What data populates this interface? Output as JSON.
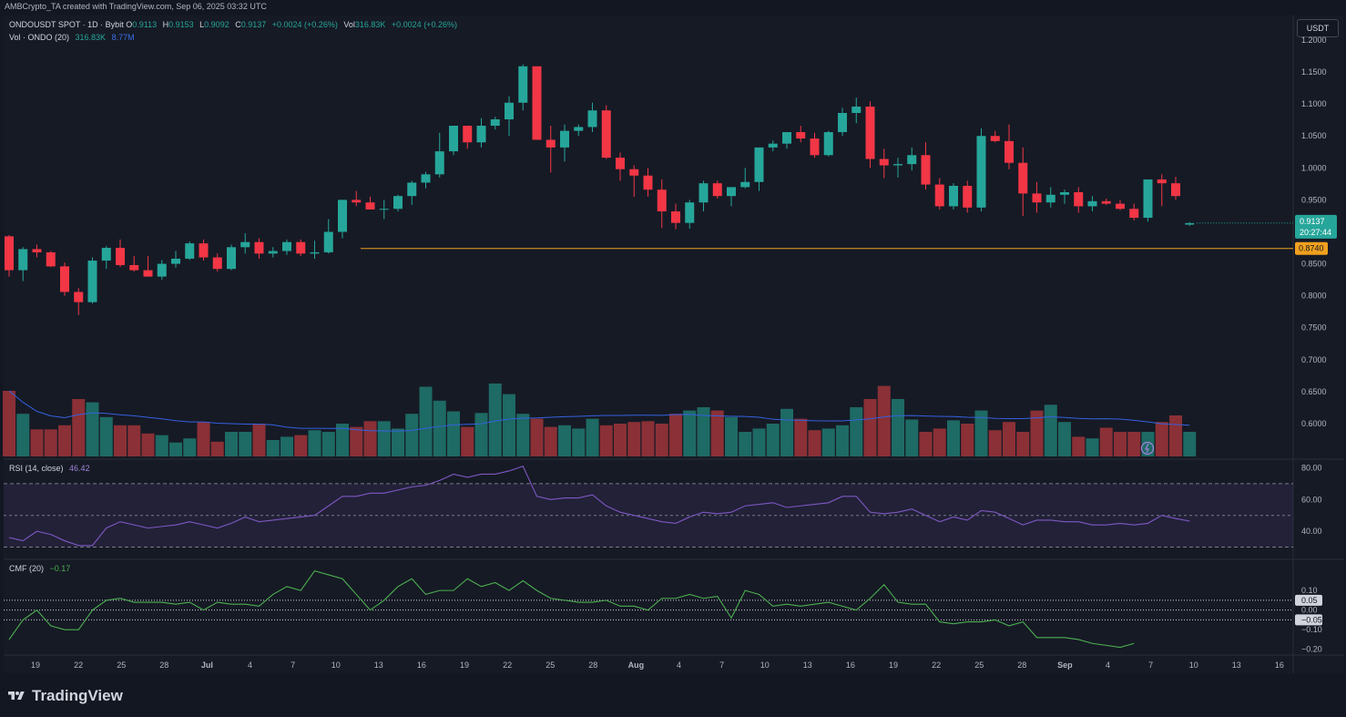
{
  "header": {
    "credit": "AMBCrypto_TA created with TradingView.com, Sep 06, 2025 03:32 UTC",
    "symbol": "ONDOUSDT SPOT · 1D · Bybit",
    "o_label": "O",
    "o": "0.9113",
    "h_label": "H",
    "h": "0.9153",
    "l_label": "L",
    "l": "0.9092",
    "c_label": "C",
    "c": "0.9137",
    "change": "+0.0024 (+0.26%)",
    "vol_label": "Vol",
    "vol": "316.83K",
    "vol_change": "+0.0024 (+0.26%)",
    "vol_indicator": "Vol · ONDO (20)",
    "vol_value": "316.83K",
    "vol_ma": "8.77M",
    "currency_button": "USDT"
  },
  "rsi": {
    "label": "RSI (14, close)",
    "value": "46.42"
  },
  "cmf": {
    "label": "CMF (20)",
    "value": "−0.17"
  },
  "brand": "TradingView",
  "colors": {
    "up": "#26a69a",
    "down": "#f23645",
    "vol_up": "#1e6a64",
    "vol_down": "#8a3036",
    "rsi": "#7e57c2",
    "cmf": "#4caf50",
    "support": "#f0a01e",
    "ma": "#3461e0"
  },
  "chart_data": [
    {
      "type": "candlestick",
      "title": "ONDOUSDT SPOT · 1D · Bybit",
      "y_ticks": [
        "0.6000",
        "0.6500",
        "0.7000",
        "0.7500",
        "0.8000",
        "0.8500",
        "0.9000",
        "0.9500",
        "1.0000",
        "1.0500",
        "1.1000",
        "1.1500",
        "1.2000"
      ],
      "x_ticks": [
        "19",
        "22",
        "25",
        "28",
        "Jul",
        "4",
        "7",
        "10",
        "13",
        "16",
        "19",
        "22",
        "25",
        "28",
        "Aug",
        "4",
        "7",
        "10",
        "13",
        "16",
        "19",
        "22",
        "25",
        "28",
        "Sep",
        "4",
        "7",
        "10",
        "13",
        "16"
      ],
      "current_price": "0.9137",
      "countdown": "20:27:44",
      "support_level": "0.8740",
      "ohlc": [
        [
          0.893,
          0.895,
          0.83,
          0.84
        ],
        [
          0.84,
          0.876,
          0.823,
          0.873
        ],
        [
          0.873,
          0.88,
          0.86,
          0.868
        ],
        [
          0.868,
          0.87,
          0.845,
          0.846
        ],
        [
          0.846,
          0.852,
          0.8,
          0.806
        ],
        [
          0.806,
          0.812,
          0.77,
          0.79
        ],
        [
          0.79,
          0.86,
          0.788,
          0.855
        ],
        [
          0.855,
          0.878,
          0.842,
          0.875
        ],
        [
          0.875,
          0.888,
          0.845,
          0.848
        ],
        [
          0.848,
          0.862,
          0.838,
          0.84
        ],
        [
          0.84,
          0.862,
          0.83,
          0.83
        ],
        [
          0.83,
          0.856,
          0.825,
          0.85
        ],
        [
          0.85,
          0.87,
          0.844,
          0.858
        ],
        [
          0.858,
          0.885,
          0.856,
          0.882
        ],
        [
          0.882,
          0.888,
          0.855,
          0.86
        ],
        [
          0.86,
          0.866,
          0.838,
          0.842
        ],
        [
          0.842,
          0.88,
          0.84,
          0.876
        ],
        [
          0.876,
          0.898,
          0.866,
          0.884
        ],
        [
          0.884,
          0.89,
          0.858,
          0.866
        ],
        [
          0.866,
          0.876,
          0.86,
          0.87
        ],
        [
          0.87,
          0.888,
          0.864,
          0.884
        ],
        [
          0.884,
          0.888,
          0.862,
          0.866
        ],
        [
          0.866,
          0.886,
          0.858,
          0.868
        ],
        [
          0.868,
          0.92,
          0.866,
          0.9
        ],
        [
          0.9,
          0.95,
          0.89,
          0.95
        ],
        [
          0.95,
          0.964,
          0.94,
          0.946
        ],
        [
          0.946,
          0.955,
          0.935,
          0.935
        ],
        [
          0.935,
          0.95,
          0.92,
          0.936
        ],
        [
          0.936,
          0.958,
          0.932,
          0.956
        ],
        [
          0.956,
          0.98,
          0.942,
          0.977
        ],
        [
          0.977,
          0.994,
          0.968,
          0.99
        ],
        [
          0.99,
          1.055,
          0.985,
          1.026
        ],
        [
          1.026,
          1.064,
          1.02,
          1.066
        ],
        [
          1.066,
          1.06,
          1.03,
          1.04
        ],
        [
          1.04,
          1.078,
          1.032,
          1.066
        ],
        [
          1.066,
          1.08,
          1.06,
          1.076
        ],
        [
          1.076,
          1.112,
          1.05,
          1.102
        ],
        [
          1.102,
          1.162,
          1.09,
          1.159
        ],
        [
          1.159,
          1.155,
          1.045,
          1.044
        ],
        [
          1.044,
          1.066,
          0.993,
          1.032
        ],
        [
          1.032,
          1.068,
          1.01,
          1.058
        ],
        [
          1.058,
          1.068,
          1.05,
          1.064
        ],
        [
          1.064,
          1.102,
          1.056,
          1.09
        ],
        [
          1.09,
          1.098,
          1.014,
          1.016
        ],
        [
          1.016,
          1.024,
          0.98,
          0.998
        ],
        [
          0.998,
          1.004,
          0.955,
          0.988
        ],
        [
          0.988,
          1.0,
          0.955,
          0.966
        ],
        [
          0.966,
          0.982,
          0.906,
          0.932
        ],
        [
          0.932,
          0.944,
          0.904,
          0.914
        ],
        [
          0.914,
          0.95,
          0.905,
          0.946
        ],
        [
          0.946,
          0.98,
          0.932,
          0.976
        ],
        [
          0.976,
          0.98,
          0.952,
          0.956
        ],
        [
          0.956,
          0.968,
          0.94,
          0.97
        ],
        [
          0.97,
          1.0,
          0.968,
          0.978
        ],
        [
          0.978,
          1.03,
          0.964,
          1.032
        ],
        [
          1.032,
          1.043,
          1.026,
          1.038
        ],
        [
          1.038,
          1.056,
          1.03,
          1.056
        ],
        [
          1.056,
          1.066,
          1.04,
          1.046
        ],
        [
          1.046,
          1.055,
          1.016,
          1.02
        ],
        [
          1.02,
          1.058,
          1.018,
          1.056
        ],
        [
          1.056,
          1.094,
          1.05,
          1.086
        ],
        [
          1.086,
          1.11,
          1.07,
          1.096
        ],
        [
          1.096,
          1.104,
          1.0,
          1.014
        ],
        [
          1.014,
          1.03,
          0.984,
          1.004
        ],
        [
          1.004,
          1.016,
          0.985,
          1.006
        ],
        [
          1.006,
          1.032,
          0.996,
          1.02
        ],
        [
          1.02,
          1.04,
          0.966,
          0.974
        ],
        [
          0.974,
          0.984,
          0.935,
          0.94
        ],
        [
          0.94,
          0.976,
          0.935,
          0.972
        ],
        [
          0.972,
          0.98,
          0.93,
          0.938
        ],
        [
          0.938,
          1.062,
          0.932,
          1.05
        ],
        [
          1.05,
          1.058,
          1.04,
          1.042
        ],
        [
          1.042,
          1.068,
          0.998,
          1.008
        ],
        [
          1.008,
          1.032,
          0.925,
          0.96
        ],
        [
          0.96,
          0.978,
          0.93,
          0.946
        ],
        [
          0.946,
          0.97,
          0.938,
          0.958
        ],
        [
          0.958,
          0.966,
          0.944,
          0.962
        ],
        [
          0.962,
          0.97,
          0.93,
          0.94
        ],
        [
          0.94,
          0.956,
          0.932,
          0.948
        ],
        [
          0.948,
          0.952,
          0.942,
          0.944
        ],
        [
          0.944,
          0.95,
          0.934,
          0.936
        ],
        [
          0.936,
          0.944,
          0.918,
          0.922
        ],
        [
          0.922,
          0.982,
          0.916,
          0.982
        ],
        [
          0.982,
          0.99,
          0.94,
          0.976
        ],
        [
          0.976,
          0.986,
          0.95,
          0.956
        ],
        [
          0.9113,
          0.9153,
          0.9092,
          0.9137
        ]
      ],
      "volume": [
        0.8,
        0.52,
        0.33,
        0.33,
        0.38,
        0.7,
        0.66,
        0.48,
        0.38,
        0.38,
        0.28,
        0.26,
        0.17,
        0.22,
        0.42,
        0.18,
        0.3,
        0.3,
        0.4,
        0.2,
        0.24,
        0.26,
        0.32,
        0.3,
        0.4,
        0.36,
        0.43,
        0.43,
        0.34,
        0.52,
        0.85,
        0.68,
        0.55,
        0.36,
        0.53,
        0.89,
        0.76,
        0.52,
        0.46,
        0.36,
        0.38,
        0.34,
        0.46,
        0.38,
        0.4,
        0.42,
        0.43,
        0.4,
        0.52,
        0.56,
        0.6,
        0.56,
        0.48,
        0.3,
        0.34,
        0.4,
        0.58,
        0.46,
        0.32,
        0.34,
        0.38,
        0.6,
        0.7,
        0.86,
        0.7,
        0.45,
        0.3,
        0.34,
        0.44,
        0.4,
        0.56,
        0.32,
        0.42,
        0.3,
        0.56,
        0.63,
        0.42,
        0.24,
        0.22,
        0.35,
        0.3,
        0.3,
        0.3,
        0.42,
        0.5,
        0.3
      ],
      "ylim": [
        0.58,
        1.2
      ]
    },
    {
      "type": "line",
      "title": "RSI (14, close)",
      "y_ticks": [
        "40.00",
        "60.00",
        "80.00"
      ],
      "bands": [
        30,
        50,
        70
      ],
      "values": [
        36,
        34,
        40,
        38,
        34,
        31,
        31,
        42,
        46,
        44,
        42,
        43,
        44,
        46,
        44,
        42,
        45,
        49,
        46,
        47,
        48,
        49,
        50,
        56,
        62,
        62,
        64,
        64,
        66,
        68,
        69,
        72,
        76,
        74,
        76,
        76,
        78,
        81,
        62,
        60,
        61,
        61,
        63,
        56,
        52,
        50,
        48,
        46,
        45,
        49,
        52,
        51,
        52,
        56,
        57,
        58,
        55,
        56,
        57,
        58,
        62,
        62,
        52,
        51,
        52,
        54,
        50,
        46,
        49,
        47,
        53,
        52,
        48,
        44,
        47,
        47,
        46,
        46,
        44,
        44,
        45,
        44,
        45,
        50,
        48,
        46.42
      ],
      "ylim": [
        28,
        82
      ]
    },
    {
      "type": "line",
      "title": "CMF (20)",
      "y_ticks": [
        "0.10",
        "0.05",
        "0.00",
        "−0.05",
        "−0.10",
        "−0.20"
      ],
      "bands": [
        0.05,
        0.0,
        -0.05
      ],
      "values": [
        -0.15,
        -0.05,
        0.0,
        -0.08,
        -0.1,
        -0.1,
        0.0,
        0.05,
        0.06,
        0.04,
        0.04,
        0.04,
        0.03,
        0.04,
        0.0,
        0.04,
        0.03,
        0.03,
        0.02,
        0.08,
        0.12,
        0.1,
        0.2,
        0.18,
        0.16,
        0.08,
        0.0,
        0.05,
        0.12,
        0.16,
        0.08,
        0.1,
        0.1,
        0.16,
        0.12,
        0.14,
        0.1,
        0.15,
        0.1,
        0.06,
        0.05,
        0.04,
        0.04,
        0.05,
        0.02,
        0.02,
        0.0,
        0.06,
        0.06,
        0.08,
        0.06,
        0.07,
        -0.04,
        0.1,
        0.08,
        0.02,
        0.03,
        0.02,
        0.03,
        0.04,
        0.02,
        0.0,
        0.06,
        0.13,
        0.04,
        0.03,
        0.03,
        -0.06,
        -0.07,
        -0.06,
        -0.06,
        -0.05,
        -0.08,
        -0.06,
        -0.14,
        -0.14,
        -0.14,
        -0.15,
        -0.17,
        -0.18,
        -0.19,
        -0.17
      ],
      "ylim": [
        -0.22,
        0.24
      ]
    }
  ]
}
